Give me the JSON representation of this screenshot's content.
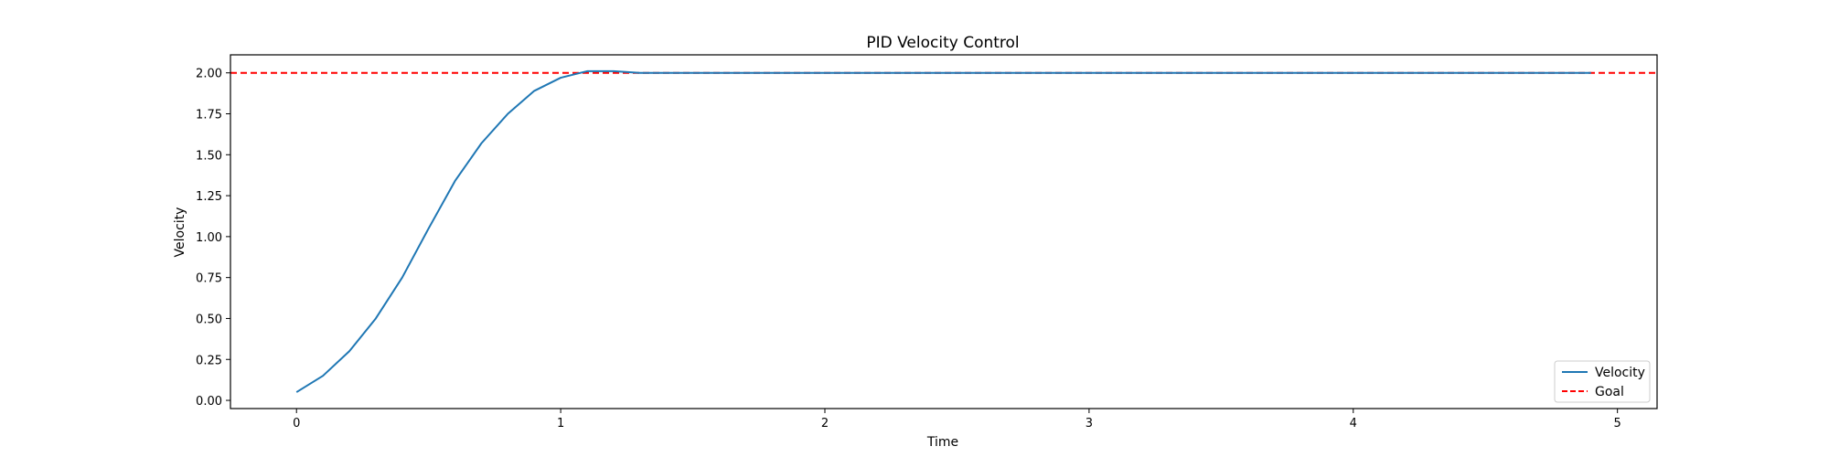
{
  "chart_data": {
    "type": "line",
    "title": "PID Velocity Control",
    "xlabel": "Time",
    "ylabel": "Velocity",
    "xlim": [
      -0.25,
      5.15
    ],
    "ylim": [
      -0.05,
      2.11
    ],
    "xticks": [
      0,
      1,
      2,
      3,
      4,
      5
    ],
    "yticks": [
      0.0,
      0.25,
      0.5,
      0.75,
      1.0,
      1.25,
      1.5,
      1.75,
      2.0
    ],
    "xtick_labels": [
      "0",
      "1",
      "2",
      "3",
      "4",
      "5"
    ],
    "ytick_labels": [
      "0.00",
      "0.25",
      "0.50",
      "0.75",
      "1.00",
      "1.25",
      "1.50",
      "1.75",
      "2.00"
    ],
    "grid": false,
    "legend_position": "lower-right",
    "series": [
      {
        "name": "Velocity",
        "style": "solid",
        "color": "#1f77b4",
        "x": [
          0.0,
          0.1,
          0.2,
          0.3,
          0.4,
          0.5,
          0.6,
          0.7,
          0.8,
          0.9,
          1.0,
          1.1,
          1.2,
          1.3,
          1.4,
          1.5,
          1.6,
          1.7,
          1.8,
          1.9,
          2.0,
          2.1,
          2.2,
          2.3,
          2.4,
          2.5,
          2.6,
          2.7,
          2.8,
          2.9,
          3.0,
          3.1,
          3.2,
          3.3,
          3.4,
          3.5,
          3.6,
          3.7,
          3.8,
          3.9,
          4.0,
          4.1,
          4.2,
          4.3,
          4.4,
          4.5,
          4.6,
          4.7,
          4.8,
          4.9
        ],
        "y": [
          0.05,
          0.15,
          0.3,
          0.5,
          0.75,
          1.05,
          1.34,
          1.57,
          1.75,
          1.89,
          1.97,
          2.01,
          2.01,
          2.0,
          2.0,
          2.0,
          2.0,
          2.0,
          2.0,
          2.0,
          2.0,
          2.0,
          2.0,
          2.0,
          2.0,
          2.0,
          2.0,
          2.0,
          2.0,
          2.0,
          2.0,
          2.0,
          2.0,
          2.0,
          2.0,
          2.0,
          2.0,
          2.0,
          2.0,
          2.0,
          2.0,
          2.0,
          2.0,
          2.0,
          2.0,
          2.0,
          2.0,
          2.0,
          2.0,
          2.0
        ]
      },
      {
        "name": "Goal",
        "style": "dashed",
        "color": "#ff0000",
        "type": "hline",
        "y": 2.0
      }
    ]
  }
}
